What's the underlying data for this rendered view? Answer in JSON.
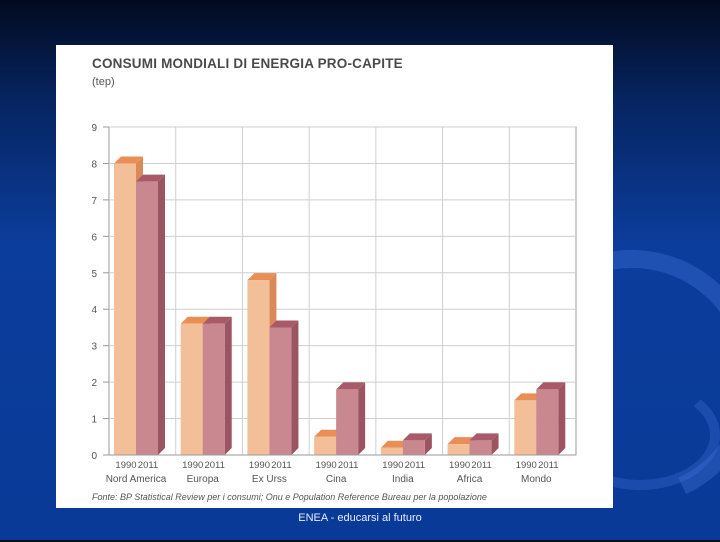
{
  "slide": {
    "footer": "ENEA - educarsi al futuro"
  },
  "chart_data": {
    "type": "bar",
    "title": "CONSUMI MONDIALI DI ENERGIA PRO-CAPITE",
    "unit": "(tep)",
    "source": "Fonte: BP Statistical Review per i consumi; Onu e Population Reference Bureau per la popolazione",
    "ylim": [
      0,
      9
    ],
    "yticks": [
      "0",
      "1",
      "2",
      "3",
      "4",
      "5",
      "6",
      "7",
      "8",
      "9"
    ],
    "categories": [
      "Nord America",
      "Europa",
      "Ex Urss",
      "Cina",
      "India",
      "Africa",
      "Mondo"
    ],
    "series": [
      {
        "name": "1990",
        "label": "1990",
        "values": [
          8.0,
          3.6,
          4.8,
          0.5,
          0.2,
          0.3,
          1.5
        ]
      },
      {
        "name": "2011",
        "label": "2011",
        "values": [
          7.5,
          3.6,
          3.5,
          1.8,
          0.4,
          0.4,
          1.8
        ]
      }
    ],
    "colors": {
      "s1990_front": "#f2bf99",
      "s1990_top": "#e98f55",
      "s1990_side": "#d98a58",
      "s2011_front": "#c9878f",
      "s2011_top": "#a85a68",
      "s2011_side": "#9c5463"
    },
    "grid": true
  }
}
